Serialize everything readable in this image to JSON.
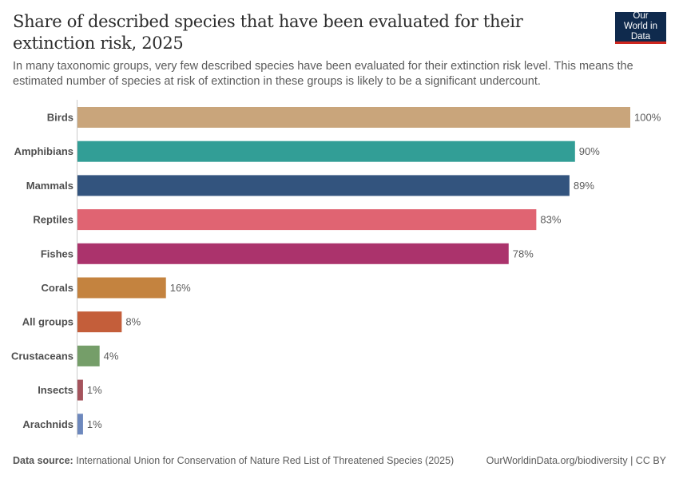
{
  "header": {
    "title": "Share of described species that have been evaluated for their extinction risk, 2025",
    "subtitle": "In many taxonomic groups, very few described species have been evaluated for their extinction risk level. This means the estimated number of species at risk of extinction in these groups is likely to be a significant undercount.",
    "logo": "Our World in Data"
  },
  "footer": {
    "source_label": "Data source:",
    "source_text": "International Union for Conservation of Nature Red List of Threatened Species (2025)",
    "credit": "OurWorldinData.org/biodiversity | CC BY"
  },
  "chart_data": {
    "type": "bar",
    "orientation": "horizontal",
    "title": "Share of described species that have been evaluated for their extinction risk, 2025",
    "categories": [
      "Birds",
      "Amphibians",
      "Mammals",
      "Reptiles",
      "Fishes",
      "Corals",
      "All groups",
      "Crustaceans",
      "Insects",
      "Arachnids"
    ],
    "values": [
      100,
      90,
      89,
      83,
      78,
      16,
      8,
      4,
      1,
      1
    ],
    "value_labels": [
      "100%",
      "90%",
      "89%",
      "83%",
      "78%",
      "16%",
      "8%",
      "4%",
      "1%",
      "1%"
    ],
    "colors": [
      "#c9a57b",
      "#329e96",
      "#33547e",
      "#e06472",
      "#ab336c",
      "#c4833f",
      "#c45e3a",
      "#759e69",
      "#a5535c",
      "#6d88bd"
    ],
    "xlim": [
      0,
      100
    ],
    "grid": false,
    "legend": "none"
  }
}
